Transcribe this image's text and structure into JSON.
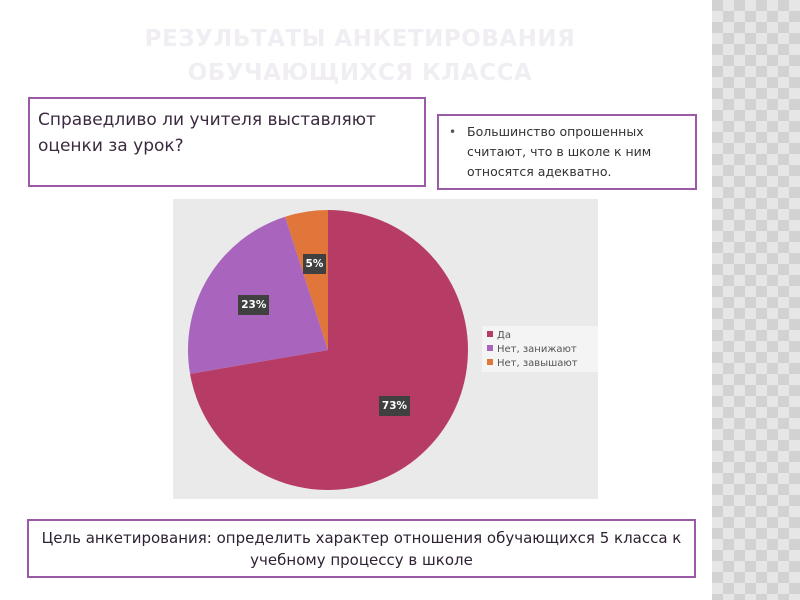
{
  "slide": {
    "title": "РЕЗУЛЬТАТЫ АНКЕТИРОВАНИЯ ОБУЧАЮЩИХСЯ КЛАССА",
    "question": "Справедливо ли учителя выставляют оценки за урок?",
    "note_items": [
      "Большинство опрошенных считают, что в школе к ним относятся адекватно."
    ],
    "goal": "Цель анкетирования: определить характер отношения обучающихся 5 класса к учебному процессу в школе"
  },
  "colors": {
    "accent_border": "#9b5aa6",
    "title": "#f0eef2",
    "chart_background": "#eaeaea"
  },
  "chart_data": {
    "type": "pie",
    "title": "",
    "categories": [
      "Да",
      "Нет, занижают",
      "Нет, завышают"
    ],
    "values": [
      73,
      23,
      5
    ],
    "labels": [
      "73%",
      "23%",
      "5%"
    ],
    "colors": [
      "#b73c65",
      "#a964bd",
      "#e0763a"
    ],
    "start_angle_deg": 0,
    "direction": "clockwise",
    "legend_position": "right"
  }
}
